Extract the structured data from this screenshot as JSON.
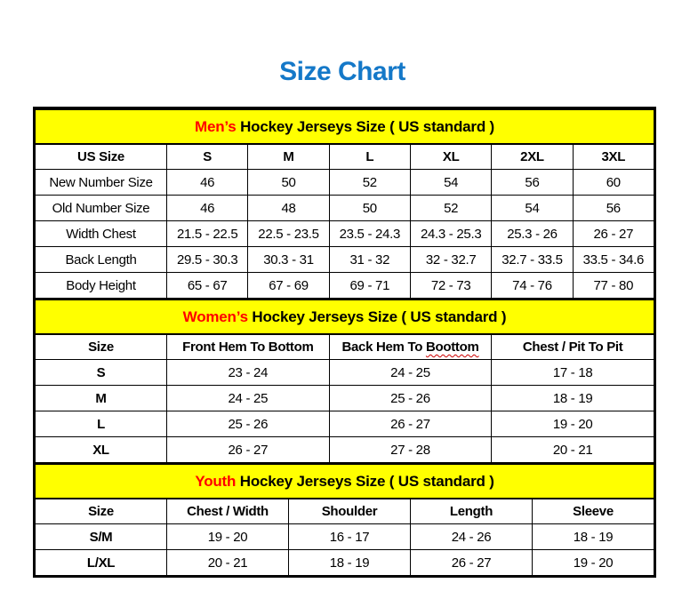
{
  "page": {
    "title": "Size Chart"
  },
  "colors": {
    "title_blue": "#1478C8",
    "band_yellow": "#FFFF00",
    "accent_red": "#FF0000",
    "border_black": "#000000",
    "squiggle_red": "#CC0000"
  },
  "tables": [
    {
      "id": "mens",
      "band": {
        "highlight": "Men’s",
        "rest": "Hockey Jerseys Size ( US standard )"
      },
      "header": [
        "US Size",
        "S",
        "M",
        "L",
        "XL",
        "2XL",
        "3XL"
      ],
      "rows": [
        [
          "New Number Size",
          "46",
          "50",
          "52",
          "54",
          "56",
          "60"
        ],
        [
          "Old Number Size",
          "46",
          "48",
          "50",
          "52",
          "54",
          "56"
        ],
        [
          "Width Chest",
          "21.5 - 22.5",
          "22.5 - 23.5",
          "23.5 - 24.3",
          "24.3 - 25.3",
          "25.3 - 26",
          "26 - 27"
        ],
        [
          "Back Length",
          "29.5 - 30.3",
          "30.3 - 31",
          "31 - 32",
          "32 - 32.7",
          "32.7 - 33.5",
          "33.5 - 34.6"
        ],
        [
          "Body Height",
          "65 - 67",
          "67 - 69",
          "69 - 71",
          "72 - 73",
          "74 - 76",
          "77 - 80"
        ]
      ]
    },
    {
      "id": "womens",
      "band": {
        "highlight": "Women’s",
        "rest": "Hockey Jerseys Size ( US standard )"
      },
      "header": [
        "Size",
        "Front Hem To Bottom",
        {
          "text": "Back Hem To Boottom",
          "wavy_word": "Boottom"
        },
        "Chest / Pit To Pit"
      ],
      "rows": [
        [
          "S",
          "23 - 24",
          "24 - 25",
          "17 - 18"
        ],
        [
          "M",
          "24 - 25",
          "25 - 26",
          "18 - 19"
        ],
        [
          "L",
          "25 - 26",
          "26 - 27",
          "19 - 20"
        ],
        [
          "XL",
          "26 - 27",
          "27 - 28",
          "20 - 21"
        ]
      ]
    },
    {
      "id": "youth",
      "band": {
        "highlight": "Youth",
        "rest": "Hockey Jerseys Size ( US standard )"
      },
      "header": [
        "Size",
        "Chest / Width",
        "Shoulder",
        "Length",
        "Sleeve"
      ],
      "rows": [
        [
          "S/M",
          "19 - 20",
          "16 - 17",
          "24 - 26",
          "18 - 19"
        ],
        [
          "L/XL",
          "20 - 21",
          "18 - 19",
          "26 - 27",
          "19 - 20"
        ]
      ]
    }
  ]
}
